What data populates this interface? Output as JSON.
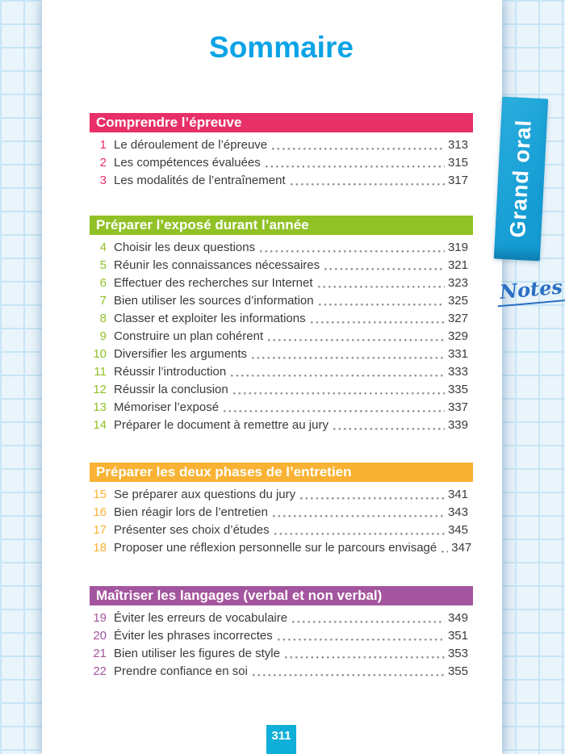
{
  "page": {
    "title": "Sommaire",
    "footer_page_number": "311",
    "side_tab_label": "Grand oral",
    "notes_label": "Notes"
  },
  "theme": {
    "title_color": "#0ba3e6",
    "text_color": "#3a3a39",
    "tab_color_top": "#2aaede",
    "tab_color_bottom": "#149cd3",
    "notes_color": "#2a6fc4",
    "footer_badge_color": "#10afd7",
    "grid_line_color": "#c7e5f5",
    "grid_bg_color": "#e9f4fb"
  },
  "sections": [
    {
      "header": "Comprendre l’épreuve",
      "color": "#e82f68",
      "items": [
        {
          "num": "1",
          "title": "Le déroulement de l’épreuve",
          "page": "313"
        },
        {
          "num": "2",
          "title": "Les compétences évaluées",
          "page": "315"
        },
        {
          "num": "3",
          "title": "Les modalités de l’entraînement",
          "page": "317"
        }
      ]
    },
    {
      "header": "Préparer l’exposé durant l’année",
      "color": "#90c226",
      "items": [
        {
          "num": "4",
          "title": "Choisir les deux questions",
          "page": "319"
        },
        {
          "num": "5",
          "title": "Réunir les connaissances nécessaires",
          "page": "321"
        },
        {
          "num": "6",
          "title": "Effectuer des recherches sur Internet",
          "page": "323"
        },
        {
          "num": "7",
          "title": "Bien utiliser les sources d’information",
          "page": "325"
        },
        {
          "num": "8",
          "title": "Classer et exploiter les informations",
          "page": "327"
        },
        {
          "num": "9",
          "title": "Construire un plan cohérent",
          "page": "329"
        },
        {
          "num": "10",
          "title": "Diversifier les arguments",
          "page": "331"
        },
        {
          "num": "11",
          "title": "Réussir l’introduction",
          "page": "333"
        },
        {
          "num": "12",
          "title": "Réussir la conclusion",
          "page": "335"
        },
        {
          "num": "13",
          "title": "Mémoriser l’exposé",
          "page": "337"
        },
        {
          "num": "14",
          "title": "Préparer le document à remettre au jury",
          "page": "339"
        }
      ]
    },
    {
      "header": "Préparer les deux phases de l’entretien",
      "color": "#f9b233",
      "items": [
        {
          "num": "15",
          "title": "Se préparer aux questions du jury",
          "page": "341"
        },
        {
          "num": "16",
          "title": "Bien réagir lors de l’entretien",
          "page": "343"
        },
        {
          "num": "17",
          "title": "Présenter ses choix d’études",
          "page": "345"
        },
        {
          "num": "18",
          "title": "Proposer une réflexion personnelle sur le parcours envisagé",
          "page": "347"
        }
      ]
    },
    {
      "header": "Maîtriser les langages (verbal et non verbal)",
      "color": "#a4559f",
      "items": [
        {
          "num": "19",
          "title": "Éviter les erreurs de vocabulaire",
          "page": "349"
        },
        {
          "num": "20",
          "title": "Éviter les phrases incorrectes",
          "page": "351"
        },
        {
          "num": "21",
          "title": "Bien utiliser les figures de style",
          "page": "353"
        },
        {
          "num": "22",
          "title": "Prendre confiance en soi",
          "page": "355"
        }
      ]
    }
  ]
}
